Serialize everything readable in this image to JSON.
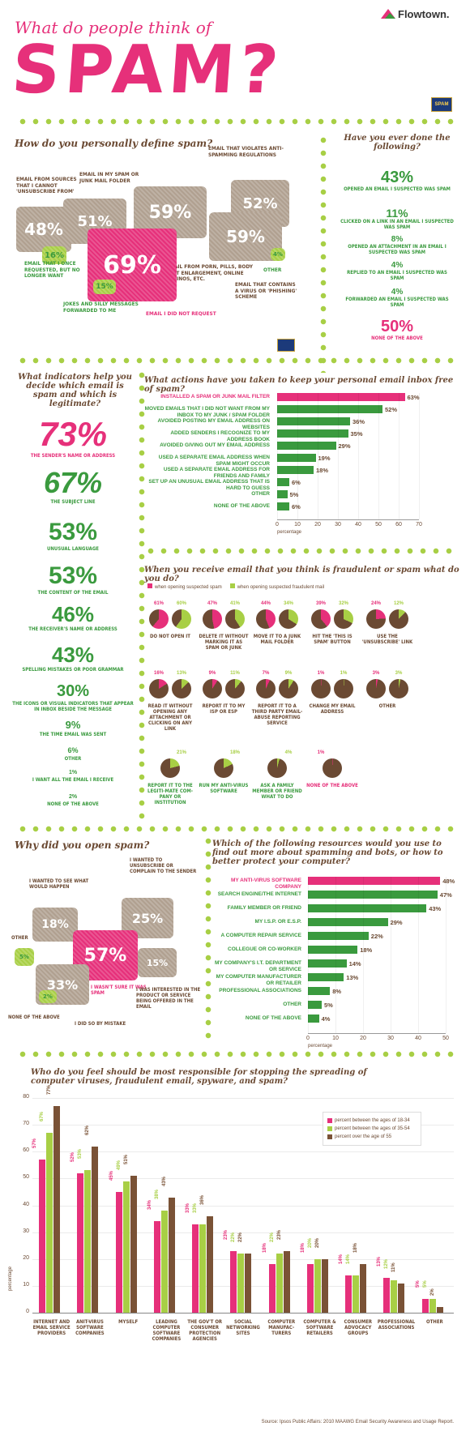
{
  "header": {
    "subtitle": "What do people think of",
    "title": "SPAM?",
    "brand": "Flowtown.",
    "spam_can": "SPAM"
  },
  "colors": {
    "pink": "#e6307a",
    "green": "#3a9a3e",
    "lime": "#a8cf45",
    "brown": "#6b4a33",
    "taupe": "#b0a090"
  },
  "define": {
    "question": "How do you personally define spam?",
    "bubbles": [
      {
        "value": "48%",
        "label": "EMAIL FROM SOURCES THAT I CANNOT 'UNSUBSCRIBE FROM'"
      },
      {
        "value": "51%",
        "label": "EMAIL IN MY SPAM OR JUNK MAIL FOLDER"
      },
      {
        "value": "59%",
        "label": "EMAIL FROM PORN, PILLS, BODY PART ENLARGEMENT, ONLINE CASINOS, ETC."
      },
      {
        "value": "52%",
        "label": "EMAIL THAT VIOLATES ANTI-SPAMMING REGULATIONS"
      },
      {
        "value": "59%",
        "label": "EMAIL THAT CONTAINS A VIRUS OR 'PHISHING' SCHEME"
      },
      {
        "value": "69%",
        "label": "EMAIL I DID NOT REQUEST"
      },
      {
        "value": "16%",
        "label": "EMAIL THAT I ONCE REQUESTED, BUT NO LONGER WANT"
      },
      {
        "value": "15%",
        "label": "JOKES AND SILLY MESSAGES FORWARDED TO ME"
      },
      {
        "value": "4%",
        "label": "OTHER"
      }
    ]
  },
  "done": {
    "question": "Have you ever done the following?",
    "items": [
      {
        "value": "43%",
        "label": "OPENED AN EMAIL I SUSPECTED WAS SPAM"
      },
      {
        "value": "11%",
        "label": "CLICKED ON A LINK IN AN EMAIL I SUSPECTED WAS SPAM"
      },
      {
        "value": "8%",
        "label": "OPENED AN ATTACHMENT IN AN EMAIL I SUSPECTED WAS SPAM"
      },
      {
        "value": "4%",
        "label": "REPLIED TO AN EMAIL I SUSPECTED WAS SPAM"
      },
      {
        "value": "4%",
        "label": "FORWARDED AN EMAIL I SUSPECTED WAS SPAM"
      },
      {
        "value": "50%",
        "label": "NONE OF THE ABOVE"
      }
    ]
  },
  "indicators": {
    "question": "What indicators help you decide which email is spam and which is legitimate?",
    "items": [
      {
        "value": "73%",
        "label": "THE SENDER'S NAME OR ADDRESS"
      },
      {
        "value": "67%",
        "label": "THE SUBJECT LINE"
      },
      {
        "value": "53%",
        "label": "UNUSUAL LANGUAGE"
      },
      {
        "value": "53%",
        "label": "THE CONTENT OF THE EMAIL"
      },
      {
        "value": "46%",
        "label": "THE RECEIVER'S NAME OR ADDRESS"
      },
      {
        "value": "43%",
        "label": "SPELLING MISTAKES OR POOR GRAMMAR"
      },
      {
        "value": "30%",
        "label": "THE ICONS OR VISUAL INDICATORS THAT APPEAR IN INBOX BESIDE THE MESSAGE"
      },
      {
        "value": "9%",
        "label": "THE TIME EMAIL WAS SENT"
      },
      {
        "value": "6%",
        "label": "OTHER"
      },
      {
        "value": "1%",
        "label": "I WANT ALL THE EMAIL I RECEIVE"
      },
      {
        "value": "2%",
        "label": "NONE OF THE ABOVE"
      }
    ]
  },
  "open": {
    "question": "Why did you open spam?",
    "bubbles": [
      {
        "value": "18%",
        "label": "I WANTED TO SEE WHAT WOULD HAPPEN"
      },
      {
        "value": "25%",
        "label": "I WANTED TO UNSUBSCRIBE OR COMPLAIN TO THE SENDER"
      },
      {
        "value": "57%",
        "label": "I WASN'T SURE IT WAS SPAM"
      },
      {
        "value": "15%",
        "label": "I WAS INTERESTED IN THE PRODUCT OR SERVICE BEING OFFERED IN THE EMAIL"
      },
      {
        "value": "33%",
        "label": "I DID SO BY MISTAKE"
      },
      {
        "value": "5%",
        "label": "OTHER"
      },
      {
        "value": "2%",
        "label": "NONE OF THE ABOVE"
      }
    ]
  },
  "fraud": {
    "question": "When you receive email that you think is fraudulent or spam what do you do?",
    "legend": [
      "when opening suspected spam",
      "when opening suspected fraudulent mail"
    ],
    "items": [
      {
        "label": "DO NOT OPEN IT",
        "a": 61,
        "b": 60
      },
      {
        "label": "DELETE IT WITHOUT MARKING IT AS SPAM OR JUNK",
        "a": 47,
        "b": 41
      },
      {
        "label": "MOVE IT TO A JUNK MAIL FOLDER",
        "a": 44,
        "b": 34
      },
      {
        "label": "HIT THE 'THIS IS SPAM' BUTTON",
        "a": 39,
        "b": 32
      },
      {
        "label": "USE THE 'UNSUBSCRIBE' LINK",
        "a": 24,
        "b": 12
      },
      {
        "label": "READ IT WITHOUT OPENING ANY ATTACHMENT OR CLICKING ON ANY LINK",
        "a": 16,
        "b": 13
      },
      {
        "label": "REPORT IT TO MY ISP OR ESP",
        "a": 9,
        "b": 11
      },
      {
        "label": "REPORT IT TO A THIRD PARTY EMAIL-ABUSE REPORTING SERVICE",
        "a": 7,
        "b": 9
      },
      {
        "label": "CHANGE MY EMAIL ADDRESS",
        "a": 1,
        "b": 1
      },
      {
        "label": "OTHER",
        "a": 3,
        "b": 3
      },
      {
        "label": "REPORT IT TO THE LEGITI-MATE COM-PANY OR INSTITUTION",
        "b": 21
      },
      {
        "label": "RUN MY ANTI-VIRUS SOFTWARE",
        "b": 18
      },
      {
        "label": "ASK A FAMILY MEMBER OR FRIEND WHAT TO DO",
        "b": 4
      },
      {
        "label": "NONE OF THE ABOVE",
        "a": 1
      }
    ]
  },
  "chart_data": [
    {
      "type": "bar",
      "title": "What actions have you taken to keep your personal email inbox free of spam?",
      "xlabel": "percentage",
      "xlim": [
        0,
        70
      ],
      "ticks": [
        0,
        10,
        20,
        30,
        40,
        50,
        60,
        70
      ],
      "categories": [
        "INSTALLED A SPAM OR JUNK MAIL FILTER",
        "MOVED EMAILS THAT I DID NOT WANT FROM MY INBOX TO MY JUNK / SPAM FOLDER",
        "AVOIDED POSTING MY EMAIL ADDRESS ON WEBSITES",
        "ADDED SENDERS I RECOGNIZE TO MY ADDRESS BOOK",
        "AVOIDED GIVING OUT MY EMAIL ADDRESS",
        "USED A SEPARATE EMAIL ADDRESS WHEN SPAM MIGHT OCCUR",
        "USED A SEPARATE EMAIL ADDRESS FOR FRIENDS AND FAMILY",
        "SET UP AN UNUSUAL EMAIL ADDRESS THAT IS HARD TO GUESS",
        "OTHER",
        "NONE OF THE ABOVE"
      ],
      "values": [
        63,
        52,
        36,
        35,
        29,
        19,
        18,
        6,
        5,
        6
      ],
      "labels": [
        "63%",
        "52%",
        "36%",
        "35%",
        "29%",
        "19%",
        "18%",
        "6%",
        "5%",
        "6%"
      ]
    },
    {
      "type": "bar",
      "title": "Which of the following resources would you use to find out more about spamming and bots, or how to better protect your computer?",
      "xlabel": "percentage",
      "xlim": [
        0,
        50
      ],
      "ticks": [
        0,
        10,
        20,
        30,
        40,
        50
      ],
      "categories": [
        "MY ANTI-VIRUS SOFTWARE COMPANY",
        "SEARCH ENGINE/THE INTERNET",
        "FAMILY MEMBER OR FRIEND",
        "MY I.S.P. OR E.S.P.",
        "A COMPUTER REPAIR SERVICE",
        "COLLEGUE OR CO-WORKER",
        "MY COMPANY'S I.T. DEPARTMENT OR SERVICE",
        "MY COMPUTER MANUFACTURER OR RETAILER",
        "PROFESSIONAL ASSOCIATIONS",
        "OTHER",
        "NONE OF THE ABOVE"
      ],
      "values": [
        48,
        47,
        43,
        29,
        22,
        18,
        14,
        13,
        8,
        5,
        4
      ],
      "labels": [
        "48%",
        "47%",
        "43%",
        "29%",
        "22%",
        "18%",
        "14%",
        "13%",
        "8%",
        "5%",
        "4%"
      ]
    },
    {
      "type": "bar",
      "title": "Who do you feel should be most responsible for stopping the spreading of computer viruses, fraudulent email, spyware, and spam?",
      "ylabel": "percentage",
      "ylim": [
        0,
        80
      ],
      "ticks": [
        0,
        10,
        20,
        30,
        40,
        50,
        60,
        70,
        80
      ],
      "categories": [
        "INTERNET AND EMAIL SERVICE PROVIDERS",
        "ANIT-VIRUS SOFTWARE COMPANIES",
        "MYSELF",
        "LEADING COMPUTER SOFTWARE COMPANIES",
        "THE GOV'T OR CONSUMER PROTECTION AGENCIES",
        "SOCIAL NETWORKING SITES",
        "COMPUTER MANUFAC-TURERS",
        "COMPUTER & SOFTWARE RETAILERS",
        "CONSUMER ADVOCACY GROUPS",
        "PROFESSIONAL ASSOCIATIONS",
        "OTHER"
      ],
      "series": [
        {
          "name": "percent between the ages of 18-34",
          "values": [
            57,
            52,
            45,
            34,
            33,
            23,
            18,
            18,
            14,
            13,
            5
          ]
        },
        {
          "name": "percent between the ages of 35-54",
          "values": [
            67,
            53,
            49,
            38,
            33,
            22,
            22,
            20,
            14,
            12,
            5
          ]
        },
        {
          "name": "percent over the age of 55",
          "values": [
            77,
            62,
            51,
            43,
            36,
            22,
            23,
            20,
            18,
            11,
            2
          ]
        }
      ]
    }
  ],
  "footer": {
    "source": "Source: Ipsos Public Affairs: 2010 MAAWG Email Security Awareness and Usage Report."
  }
}
